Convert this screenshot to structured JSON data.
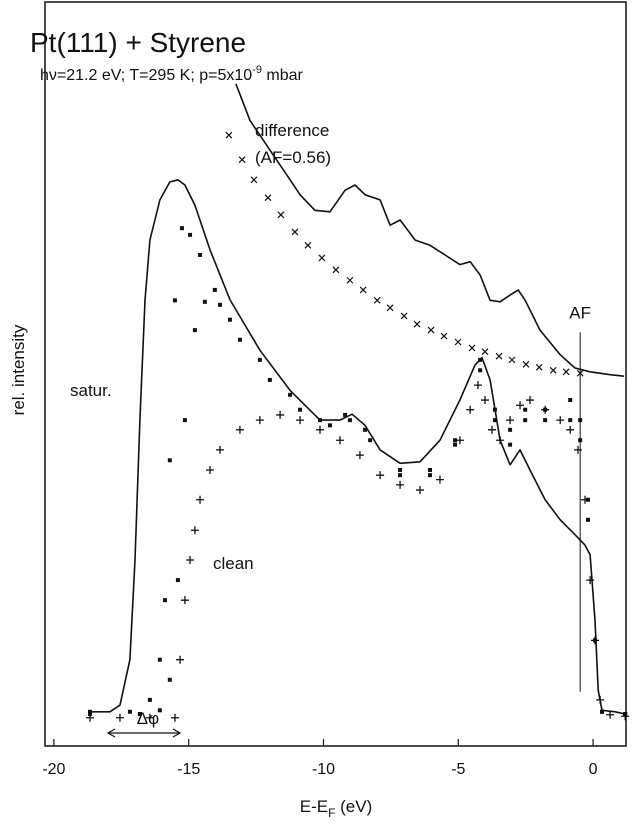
{
  "chart_data": {
    "type": "line",
    "title": "Pt(111) + Styrene",
    "subtitle": [
      "hν=21.2 eV; T=295 K; p=5x10",
      "-9",
      " mbar"
    ],
    "x_label": [
      "E-E",
      "F",
      " (eV)"
    ],
    "y_label": "rel. intensity",
    "annotations": [
      "satur.",
      "clean",
      "difference",
      "(AF=0.56)",
      "Δφ"
    ],
    "xlim": [
      -20.33,
      1.22
    ],
    "ylim": [
      0,
      100
    ],
    "xticks": [
      -20,
      -15,
      -10,
      -5,
      0
    ],
    "reference_line": {
      "label": "AF",
      "x": -0.48,
      "y": [
        7.3,
        55.6
      ]
    },
    "series": [
      {
        "marker": "none",
        "color": "#111111",
        "x": [
          -18.74,
          -17.92,
          -17.55,
          -17.18,
          -16.99,
          -16.81,
          -16.62,
          -16.44,
          -16.07,
          -15.7,
          -15.4,
          -15.14,
          -14.77,
          -14.21,
          -13.47,
          -12.36,
          -11.24,
          -10.13,
          -9.39,
          -8.94,
          -8.46,
          -7.9,
          -7.16,
          -6.42,
          -5.68,
          -4.94,
          -4.38,
          -4.12,
          -3.82,
          -3.45,
          -3.08,
          -2.71,
          -2.34,
          -1.78,
          -1.22,
          -0.67,
          -0.3,
          -0.11,
          0.07,
          0.19,
          0.33,
          0.82,
          1.19
        ],
        "values": [
          4.6,
          4.6,
          5.5,
          11.6,
          25.0,
          43.8,
          59.9,
          68.0,
          73.4,
          75.8,
          76.1,
          75.4,
          72.7,
          66.7,
          60.0,
          53.2,
          47.8,
          43.8,
          43.8,
          44.6,
          43.1,
          39.8,
          38.0,
          38.2,
          41.1,
          46.5,
          51.2,
          52.2,
          49.2,
          41.1,
          37.8,
          39.8,
          37.1,
          33.1,
          30.4,
          28.4,
          27.0,
          25.7,
          16.9,
          7.5,
          4.8,
          4.6,
          4.3
        ]
      },
      {
        "marker": "square",
        "color": "#111111",
        "x": [
          -18.66,
          -17.18,
          -16.44,
          -16.07,
          -15.88,
          -15.7,
          -15.51,
          -15.25,
          -14.95,
          -14.58,
          -14.03,
          -13.47,
          -12.36,
          -11.24,
          -10.13,
          -9.2,
          -8.46,
          -7.16,
          -6.05,
          -5.12,
          -4.19,
          -3.64,
          -3.08,
          -2.52,
          -1.78,
          -0.85,
          -0.48,
          -0.19,
          0.07,
          0.33,
          1.19
        ],
        "values": [
          4.6,
          4.6,
          6.2,
          11.6,
          19.6,
          38.4,
          59.9,
          69.6,
          68.7,
          66.0,
          61.3,
          57.3,
          51.9,
          47.2,
          43.8,
          44.5,
          42.5,
          37.1,
          37.1,
          41.1,
          51.9,
          45.2,
          42.5,
          45.2,
          43.8,
          43.8,
          41.1,
          30.4,
          14.2,
          4.6,
          4.3
        ]
      },
      {
        "marker": "square",
        "color": "#111111",
        "x": [
          -18.66,
          -16.81,
          -16.07,
          -15.7,
          -15.4,
          -15.14,
          -14.77,
          -14.4,
          -13.84,
          -13.1,
          -11.99,
          -10.87,
          -9.76,
          -9.02,
          -8.27,
          -7.16,
          -6.05,
          -5.12,
          -4.19,
          -3.64,
          -3.08,
          -2.52,
          -1.78,
          -0.85,
          -0.48,
          -0.19,
          0.07,
          0.33,
          1.19
        ],
        "values": [
          4.3,
          4.3,
          4.8,
          8.9,
          22.3,
          43.8,
          55.9,
          59.7,
          59.3,
          54.6,
          49.2,
          45.2,
          43.1,
          43.8,
          41.1,
          36.4,
          36.4,
          40.5,
          50.5,
          43.8,
          40.5,
          43.8,
          45.2,
          46.5,
          43.8,
          33.1,
          14.2,
          4.6,
          4.3
        ]
      },
      {
        "marker": "plus",
        "color": "#111111",
        "x": [
          -18.66,
          -17.55,
          -16.44,
          -15.51,
          -15.32,
          -15.14,
          -14.95,
          -14.77,
          -14.58,
          -14.21,
          -13.84,
          -13.1,
          -12.36,
          -11.61,
          -10.87,
          -10.13,
          -9.39,
          -8.65,
          -7.9,
          -7.16,
          -6.42,
          -5.68,
          -4.94,
          -4.56,
          -4.27,
          -4.01,
          -3.75,
          -3.45,
          -3.08,
          -2.71,
          -2.34,
          -1.78,
          -1.22,
          -0.85,
          -0.56,
          -0.3,
          -0.11,
          0.07,
          0.26,
          0.63,
          1.19
        ],
        "values": [
          3.8,
          3.8,
          3.8,
          3.8,
          11.6,
          19.6,
          25.0,
          29.0,
          33.1,
          37.1,
          39.8,
          42.5,
          43.8,
          44.5,
          43.8,
          42.5,
          41.1,
          39.1,
          36.4,
          35.1,
          34.4,
          35.8,
          41.1,
          45.2,
          48.5,
          46.5,
          42.5,
          41.1,
          43.8,
          45.8,
          46.5,
          45.2,
          43.8,
          42.5,
          39.8,
          33.1,
          22.3,
          14.2,
          6.2,
          4.2,
          4.0
        ]
      },
      {
        "marker": "none",
        "color": "#111111",
        "x": [
          -13.25,
          -12.73,
          -11.99,
          -11.24,
          -10.87,
          -10.32,
          -9.76,
          -9.2,
          -8.83,
          -8.46,
          -7.9,
          -7.53,
          -7.16,
          -6.6,
          -6.05,
          -5.49,
          -4.94,
          -4.56,
          -4.19,
          -3.82,
          -3.45,
          -3.08,
          -2.78,
          -2.52,
          -1.97,
          -1.22,
          -0.67,
          -0.11,
          0.63,
          1.15
        ],
        "values": [
          89.0,
          84.1,
          80.1,
          76.1,
          74.1,
          72.0,
          71.8,
          74.7,
          75.4,
          74.1,
          73.4,
          70.0,
          70.7,
          68.0,
          67.3,
          66.0,
          64.7,
          65.1,
          63.3,
          59.9,
          59.7,
          60.6,
          61.3,
          59.9,
          55.9,
          52.6,
          50.8,
          50.3,
          49.9,
          49.7
        ]
      },
      {
        "marker": "cross",
        "color": "#111111",
        "x": [
          -13.51,
          -13.02,
          -12.58,
          -12.06,
          -11.58,
          -11.06,
          -10.58,
          -10.06,
          -9.54,
          -9.02,
          -8.53,
          -8.01,
          -7.53,
          -7.01,
          -6.53,
          -6.01,
          -5.53,
          -5.01,
          -4.49,
          -4.01,
          -3.49,
          -3.01,
          -2.49,
          -2.0,
          -1.48,
          -1.0,
          -0.48
        ],
        "values": [
          82.1,
          78.8,
          76.1,
          73.7,
          71.4,
          69.1,
          67.3,
          65.6,
          64.0,
          62.6,
          61.3,
          59.9,
          58.9,
          57.8,
          56.7,
          55.9,
          55.1,
          54.3,
          53.5,
          53.0,
          52.4,
          51.9,
          51.3,
          50.9,
          50.5,
          50.3,
          50.1
        ]
      }
    ]
  }
}
